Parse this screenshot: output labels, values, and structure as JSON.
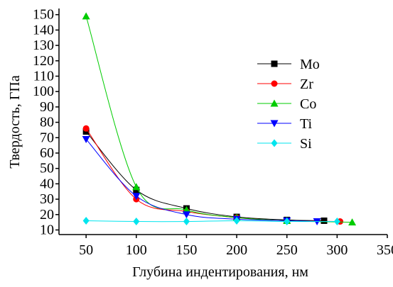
{
  "chart_data": {
    "type": "scatter-line",
    "x_label": "Глубина индентирования, нм",
    "y_label": "Твердость, ГПа",
    "xlim": [
      23,
      350
    ],
    "xticks": [
      50,
      100,
      150,
      200,
      250,
      300,
      350
    ],
    "ylim": [
      7,
      154
    ],
    "yticks": [
      10,
      20,
      30,
      40,
      50,
      60,
      70,
      80,
      90,
      100,
      110,
      120,
      130,
      140,
      150
    ],
    "legend": "top-right",
    "series": [
      {
        "name": "Mo",
        "color": "#000000",
        "marker": "square",
        "x": [
          50,
          100,
          150,
          200,
          250,
          287
        ],
        "values": [
          74,
          36,
          24,
          18.5,
          16.5,
          16
        ]
      },
      {
        "name": "Zr",
        "color": "#ff0000",
        "marker": "circle",
        "x": [
          50,
          100,
          150,
          200,
          250,
          303
        ],
        "values": [
          76,
          30,
          22,
          18,
          16,
          15.5
        ]
      },
      {
        "name": "Co",
        "color": "#00cc00",
        "marker": "triangle-up",
        "x": [
          50,
          100,
          150,
          200,
          250,
          315
        ],
        "values": [
          149,
          38,
          23,
          18,
          16,
          15
        ]
      },
      {
        "name": "Ti",
        "color": "#0000ff",
        "marker": "triangle-down",
        "x": [
          50,
          100,
          150,
          200,
          250,
          280
        ],
        "values": [
          69,
          32,
          20,
          17,
          16,
          15.5
        ]
      },
      {
        "name": "Si",
        "color": "#00e5ee",
        "marker": "diamond",
        "x": [
          50,
          100,
          150,
          200,
          250,
          300
        ],
        "values": [
          16,
          15.5,
          15.5,
          16,
          15.5,
          15.5
        ]
      }
    ]
  }
}
